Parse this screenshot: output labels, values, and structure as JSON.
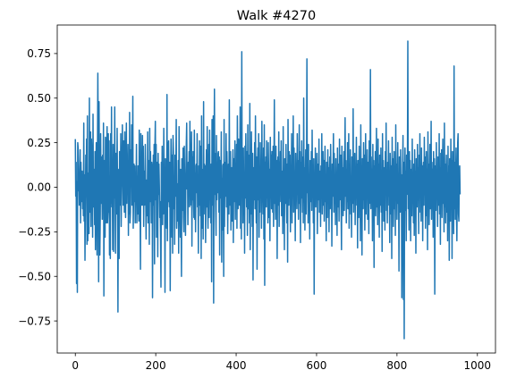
{
  "chart_data": {
    "type": "line",
    "title": "Walk #4270",
    "xlabel": "",
    "ylabel": "",
    "xlim": [
      -45,
      1045
    ],
    "ylim": [
      -0.93,
      0.91
    ],
    "xticks": [
      0,
      200,
      400,
      600,
      800,
      1000
    ],
    "xtick_labels": [
      "0",
      "200",
      "400",
      "600",
      "800",
      "1000"
    ],
    "yticks": [
      -0.75,
      -0.5,
      -0.25,
      0.0,
      0.25,
      0.5,
      0.75
    ],
    "ytick_labels": [
      "−0.75",
      "−0.50",
      "−0.25",
      "0.00",
      "0.25",
      "0.50",
      "0.75"
    ],
    "grid": false,
    "legend": "none",
    "line_color": "#1f77b4",
    "series": [
      {
        "n_points": 1000,
        "x_start": 0,
        "x_step": 1,
        "values": [
          0.27,
          -0.05,
          0.14,
          -0.54,
          0.03,
          -0.59,
          0.25,
          0.22,
          -0.02,
          0.07,
          -0.1,
          0.1,
          0.21,
          -0.2,
          0.14,
          0.0,
          -0.08,
          0.09,
          -0.12,
          0.02,
          -0.16,
          0.36,
          -0.19,
          0.07,
          -0.41,
          -0.1,
          0.18,
          -0.05,
          0.27,
          -0.32,
          0.4,
          -0.3,
          0.08,
          -0.05,
          -0.26,
          0.5,
          -0.14,
          -0.04,
          0.31,
          -0.22,
          0.27,
          0.19,
          0.06,
          -0.28,
          0.41,
          -0.11,
          -0.04,
          0.1,
          -0.21,
          0.2,
          -0.35,
          0.04,
          0.25,
          -0.12,
          -0.38,
          0.15,
          0.64,
          0.2,
          -0.53,
          0.48,
          0.02,
          -0.38,
          -0.16,
          0.3,
          -0.09,
          0.17,
          0.06,
          -0.18,
          0.18,
          -0.06,
          0.36,
          -0.61,
          0.15,
          0.05,
          -0.28,
          0.28,
          0.1,
          -0.2,
          0.22,
          0.34,
          -0.2,
          -0.14,
          0.3,
          -0.14,
          0.26,
          -0.38,
          0.02,
          -0.4,
          0.3,
          -0.09,
          0.45,
          -0.11,
          0.05,
          -0.35,
          0.24,
          -0.36,
          0.13,
          -0.06,
          0.45,
          0.0,
          -0.37,
          0.19,
          0.04,
          -0.15,
          0.33,
          -0.04,
          -0.7,
          0.0,
          0.1,
          -0.4,
          0.2,
          0.05,
          -0.1,
          0.3,
          -0.22,
          0.0,
          0.1,
          0.35,
          0.08,
          -0.1,
          0.26,
          0.05,
          -0.14,
          0.31,
          -0.04,
          -0.17,
          0.15,
          0.36,
          -0.09,
          0.17,
          0.05,
          0.24,
          -0.27,
          0.13,
          -0.15,
          0.42,
          -0.2,
          -0.14,
          0.21,
          0.05,
          0.35,
          -0.1,
          0.12,
          0.51,
          -0.23,
          -0.05,
          0.13,
          -0.08,
          0.12,
          -0.2,
          0.05,
          -0.05,
          0.24,
          -0.2,
          0.06,
          -0.15,
          0.12,
          0.05,
          -0.19,
          0.32,
          0.0,
          -0.1,
          -0.46,
          0.3,
          -0.07,
          -0.1,
          0.05,
          0.29,
          -0.1,
          0.23,
          -0.22,
          0.09,
          -0.1,
          0.04,
          0.24,
          -0.03,
          -0.29,
          0.04,
          0.02,
          -0.16,
          0.31,
          -0.2,
          -0.04,
          0.15,
          -0.32,
          0.33,
          -0.08,
          0.2,
          0.05,
          -0.2,
          0.14,
          0.11,
          -0.62,
          -0.03,
          0.18,
          -0.1,
          0.24,
          -0.43,
          0.23,
          0.37,
          -0.07,
          0.24,
          -0.28,
          0.05,
          0.14,
          -0.39,
          0.19,
          -0.04,
          0.13,
          0.01,
          -0.17,
          -0.08,
          -0.28,
          -0.56,
          0.14,
          -0.04,
          0.23,
          -0.21,
          0.02,
          -0.15,
          0.33,
          -0.04,
          0.07,
          -0.59,
          0.16,
          0.11,
          0.02,
          -0.23,
          0.52,
          -0.3,
          0.25,
          -0.08,
          0.26,
          -0.04,
          -0.11,
          0.14,
          -0.58,
          -0.01,
          0.27,
          0.12,
          -0.28,
          0.18,
          -0.37,
          0.29,
          0.2,
          -0.12,
          0.04,
          -0.32,
          0.18,
          -0.05,
          0.08,
          0.38,
          -0.23,
          0.02,
          -0.06,
          -0.19,
          0.15,
          -0.37,
          0.34,
          0.06,
          -0.1,
          -0.28,
          0.1,
          -0.17,
          -0.5,
          0.16,
          0.09,
          -0.13,
          0.22,
          -0.17,
          -0.25,
          0.23,
          -0.01,
          0.04,
          -0.27,
          0.08,
          0.24,
          0.36,
          -0.01,
          0.12,
          -0.21,
          0.14,
          0.02,
          0.2,
          -0.11,
          0.37,
          -0.1,
          0.03,
          0.13,
          0.31,
          -0.33,
          0.17,
          -0.07,
          0.2,
          -0.04,
          -0.17,
          0.32,
          -0.18,
          0.08,
          -0.25,
          0.12,
          0.13,
          -0.03,
          0.3,
          -0.11,
          0.05,
          -0.37,
          0.12,
          -0.1,
          0.26,
          0.03,
          -0.16,
          0.23,
          -0.4,
          0.4,
          -0.23,
          0.01,
          0.1,
          -0.29,
          0.48,
          -0.15,
          0.13,
          -0.02,
          0.12,
          -0.31,
          0.04,
          0.21,
          -0.11,
          0.34,
          -0.07,
          -0.23,
          0.03,
          0.24,
          -0.17,
          0.32,
          -0.02,
          0.1,
          -0.2,
          0.13,
          -0.53,
          0.38,
          -0.08,
          -0.1,
          0.4,
          -0.65,
          0.16,
          0.55,
          -0.04,
          0.19,
          -0.1,
          -0.27,
          0.29,
          -0.07,
          0.1,
          -0.03,
          0.19,
          0.2,
          -0.14,
          0.17,
          -0.38,
          0.15,
          0.05,
          -0.06,
          0.31,
          -0.42,
          0.05,
          -0.24,
          0.12,
          0.13,
          -0.5,
          0.38,
          -0.22,
          0.1,
          0.14,
          -0.05,
          0.3,
          -0.11,
          0.2,
          0.06,
          -0.26,
          0.01,
          0.13,
          -0.15,
          0.49,
          -0.1,
          0.0,
          0.2,
          -0.24,
          0.03,
          0.11,
          -0.19,
          0.07,
          0.21,
          -0.31,
          0.16,
          0.01,
          -0.08,
          0.26,
          -0.18,
          0.12,
          -0.05,
          0.24,
          -0.23,
          0.4,
          0.04,
          -0.12,
          0.27,
          0.18,
          -0.1,
          0.1,
          0.45,
          -0.23,
          0.09,
          -0.29,
          0.76,
          -0.01,
          0.13,
          -0.2,
          0.22,
          -0.1,
          0.05,
          -0.37,
          0.23,
          -0.06,
          0.3,
          0.04,
          -0.11,
          0.2,
          -0.27,
          0.35,
          -0.12,
          0.18,
          0.02,
          -0.2,
          0.47,
          -0.35,
          0.08,
          -0.15,
          0.31,
          0.04,
          -0.22,
          0.19,
          -0.52,
          0.11,
          0.0,
          -0.07,
          0.25,
          -0.12,
          0.4,
          0.03,
          -0.2,
          0.17,
          -0.46,
          0.1,
          0.22,
          -0.07,
          0.3,
          -0.28,
          0.05,
          -0.14,
          0.25,
          -0.05,
          0.15,
          -0.23,
          0.37,
          -0.08,
          0.02,
          -0.15,
          0.22,
          -0.29,
          0.35,
          -0.55,
          0.14,
          0.0,
          0.17,
          -0.11,
          0.26,
          -0.06,
          0.12,
          -0.2,
          0.25,
          0.05,
          -0.17,
          0.1,
          -0.3,
          0.28,
          -0.06,
          0.18,
          -0.12,
          0.2,
          0.03,
          -0.14,
          0.23,
          -0.22,
          0.11,
          0.49,
          -0.09,
          0.07,
          -0.18,
          0.23,
          -0.04,
          0.15,
          -0.4,
          0.06,
          0.17,
          -0.1,
          0.31,
          -0.22,
          0.14,
          -0.03,
          0.2,
          -0.08,
          0.26,
          -0.16,
          0.09,
          0.02,
          -0.26,
          0.34,
          -0.12,
          0.05,
          -0.35,
          0.16,
          0.03,
          -0.09,
          0.24,
          -0.05,
          -0.2,
          0.13,
          -0.42,
          0.38,
          0.05,
          -0.1,
          0.2,
          -0.06,
          0.18,
          -0.25,
          0.1,
          -0.04,
          0.3,
          -0.2,
          0.12,
          0.01,
          0.4,
          -0.14,
          0.22,
          -0.07,
          0.08,
          -0.3,
          0.19,
          -0.02,
          0.11,
          -0.12,
          0.3,
          -0.04,
          0.15,
          -0.18,
          0.05,
          0.35,
          -0.09,
          0.2,
          -0.31,
          0.14,
          -0.06,
          0.26,
          0.02,
          -0.14,
          0.17,
          -0.2,
          0.5,
          -0.08,
          0.11,
          -0.24,
          0.06,
          0.21,
          -0.15,
          0.08,
          0.72,
          -0.03,
          0.13,
          -0.2,
          0.24,
          -0.1,
          0.03,
          -0.29,
          0.15,
          0.0,
          -0.08,
          0.2,
          -0.13,
          0.32,
          -0.05,
          0.09,
          -0.2,
          0.16,
          -0.6,
          0.07,
          -0.03,
          0.22,
          -0.11,
          0.1,
          -0.04,
          0.19,
          -0.26,
          0.05,
          0.13,
          -0.07,
          0.27,
          -0.14,
          0.02,
          0.09,
          -0.22,
          0.12,
          -0.04,
          0.3,
          -0.15,
          0.08,
          0.2,
          -0.1,
          0.15,
          -0.19,
          0.06,
          0.23,
          -0.08,
          0.0,
          -0.3,
          0.14,
          0.05,
          -0.17,
          0.21,
          -0.06,
          0.11,
          -0.25,
          0.08,
          0.17,
          -0.12,
          0.24,
          -0.02,
          0.07,
          -0.33,
          0.13,
          -0.05,
          0.1,
          0.3,
          -0.14,
          0.19,
          -0.09,
          0.04,
          -0.21,
          0.16,
          -0.03,
          0.08,
          -0.27,
          0.22,
          -0.11,
          0.05,
          0.13,
          -0.19,
          0.27,
          -0.07,
          0.01,
          0.18,
          -0.1,
          -0.35,
          0.23,
          -0.06,
          0.11,
          -0.16,
          0.04,
          0.2,
          -0.13,
          0.07,
          0.39,
          -0.05,
          0.15,
          -0.2,
          0.1,
          -0.08,
          0.25,
          -0.12,
          0.0,
          0.3,
          -0.23,
          0.12,
          -0.04,
          0.21,
          -0.15,
          0.06,
          -0.28,
          0.17,
          0.03,
          -0.09,
          0.44,
          -0.14,
          0.1,
          -0.02,
          0.19,
          -0.21,
          0.08,
          -0.06,
          0.28,
          -0.1,
          0.13,
          -0.34,
          0.15,
          0.05,
          -0.17,
          0.23,
          -0.08,
          0.11,
          -0.3,
          0.35,
          -0.04,
          0.02,
          -0.38,
          0.16,
          0.1,
          -0.12,
          0.25,
          -0.07,
          0.18,
          -0.24,
          0.05,
          0.3,
          -0.15,
          0.09,
          -0.03,
          0.21,
          -0.18,
          0.06,
          0.14,
          -0.26,
          0.26,
          -0.09,
          0.03,
          0.66,
          -0.12,
          0.17,
          -0.05,
          0.1,
          -0.3,
          0.24,
          -0.08,
          0.15,
          -0.45,
          0.12,
          -0.02,
          0.2,
          -0.16,
          0.07,
          0.33,
          -0.11,
          0.02,
          -0.21,
          0.27,
          -0.06,
          0.13,
          -0.28,
          0.18,
          0.04,
          -0.1,
          0.22,
          -0.14,
          0.09,
          -0.36,
          0.3,
          -0.07,
          0.15,
          -0.19,
          0.06,
          0.11,
          -0.24,
          0.2,
          -0.03,
          0.36,
          -0.13,
          0.08,
          -0.2,
          0.14,
          -0.05,
          0.26,
          -0.1,
          0.02,
          -0.31,
          0.19,
          0.07,
          -0.15,
          0.12,
          -0.4,
          0.28,
          -0.08,
          0.16,
          -0.22,
          0.04,
          0.2,
          -0.12,
          0.1,
          -0.27,
          0.35,
          -0.06,
          0.13,
          -0.18,
          0.08,
          0.25,
          -0.09,
          0.03,
          -0.47,
          0.17,
          0.11,
          -0.14,
          0.21,
          -0.05,
          0.07,
          -0.62,
          -0.22,
          0.1,
          0.29,
          -0.63,
          0.14,
          -0.85,
          0.02,
          0.22,
          -0.13,
          0.09,
          -0.3,
          0.18,
          -0.04,
          0.12,
          0.82,
          -0.12,
          0.05,
          -0.24,
          0.2,
          -0.06,
          0.15,
          -0.3,
          0.07,
          0.1,
          -0.16,
          0.27,
          -0.08,
          0.03,
          -0.2,
          0.13,
          -0.27,
          0.21,
          -0.05,
          0.09,
          -0.37,
          0.16,
          0.04,
          -0.11,
          0.24,
          -0.07,
          0.11,
          -0.26,
          0.18,
          -0.03,
          0.3,
          -0.14,
          0.06,
          -0.19,
          0.22,
          -0.09,
          0.12,
          -0.3,
          0.08,
          0.14,
          -0.1,
          0.28,
          -0.04,
          0.17,
          -0.23,
          0.05,
          0.2,
          -0.16,
          0.1,
          -0.35,
          0.31,
          -0.06,
          0.13,
          -0.21,
          0.07,
          0.24,
          -0.12,
          0.02,
          0.37,
          -0.18,
          0.14,
          -0.07,
          0.1,
          -0.28,
          0.2,
          -0.04,
          0.16,
          -0.6,
          0.08,
          0.12,
          -0.13,
          0.25,
          -0.06,
          0.09,
          -0.22,
          0.17,
          0.03,
          -0.1,
          0.3,
          -0.15,
          0.11,
          -0.32,
          0.19,
          -0.05,
          0.21,
          -0.17,
          0.07,
          0.27,
          -0.09,
          0.04,
          -0.25,
          0.36,
          -0.11,
          0.13,
          -0.2,
          0.06,
          0.18,
          -0.14,
          0.08,
          -0.3,
          0.23,
          -0.05,
          0.12,
          -0.41,
          0.16,
          0.1,
          -0.19,
          0.27,
          -0.07,
          0.15,
          -0.4,
          0.2,
          -0.03,
          0.09,
          -0.26,
          0.68,
          -0.12,
          0.14,
          -0.18,
          0.06,
          0.22,
          -0.15,
          -0.3,
          0.03,
          0.25,
          0.3,
          -0.15,
          -0.19,
          0.08,
          0.12,
          -0.04
        ]
      }
    ]
  }
}
